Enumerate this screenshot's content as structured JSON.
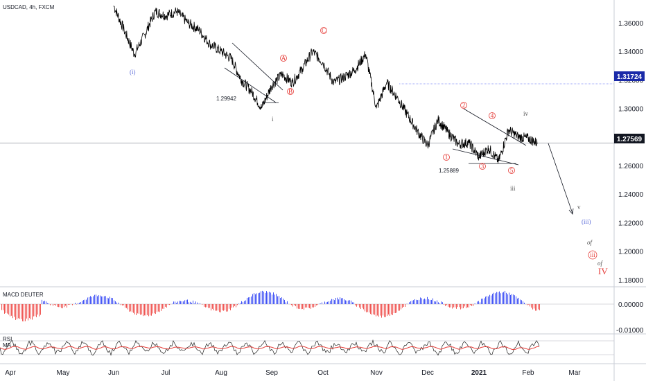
{
  "symbol_title": "USDCAD, 4h, FXCM",
  "colors": {
    "price": "#000000",
    "hline_black": "#787b86",
    "hline_blue": "#3f51f5",
    "macd_pos": "#3f51f5",
    "macd_neg": "#ef5350",
    "rsi_line": "#1e1e1e",
    "rsi_ma": "#e53935",
    "grid": "#e0e3eb",
    "wave_red": "#e53935",
    "wave_blue": "#5b6bd8"
  },
  "chart_data": {
    "type": "line",
    "title": "USDCAD, 4h, FXCM",
    "y_axis": {
      "ylim": [
        1.176,
        1.375
      ],
      "ticks": [
        "1.36000",
        "1.34000",
        "1.32000",
        "1.30000",
        "1.28000",
        "1.26000",
        "1.24000",
        "1.22000",
        "1.20000",
        "1.18000"
      ],
      "tick_values": [
        1.36,
        1.34,
        1.32,
        1.3,
        1.28,
        1.26,
        1.24,
        1.22,
        1.2,
        1.18
      ]
    },
    "x_axis": {
      "labels": [
        "Apr",
        "May",
        "Jun",
        "Jul",
        "Aug",
        "Sep",
        "Oct",
        "Nov",
        "Dec",
        "2021",
        "Feb",
        "Mar"
      ],
      "label_index": [
        0,
        1,
        2,
        3,
        4,
        5,
        6,
        7,
        8,
        9,
        10,
        11
      ]
    },
    "price_anchors": {
      "t": [
        2.0,
        2.2,
        2.4,
        2.6,
        2.8,
        3.0,
        3.2,
        3.4,
        3.6,
        3.8,
        4.0,
        4.2,
        4.4,
        4.6,
        4.8,
        5.0,
        5.2,
        5.4,
        5.6,
        5.8,
        6.0,
        6.2,
        6.4,
        6.6,
        6.8,
        7.0,
        7.2,
        7.4,
        7.6,
        7.8,
        8.0,
        8.2,
        8.4,
        8.6,
        8.8,
        9.0,
        9.2,
        9.4,
        9.6,
        9.8,
        10.0,
        10.2
      ],
      "v": [
        1.372,
        1.355,
        1.338,
        1.352,
        1.368,
        1.365,
        1.368,
        1.36,
        1.355,
        1.345,
        1.34,
        1.335,
        1.32,
        1.312,
        1.3003,
        1.316,
        1.324,
        1.318,
        1.328,
        1.34,
        1.332,
        1.318,
        1.322,
        1.327,
        1.338,
        1.3,
        1.318,
        1.308,
        1.296,
        1.284,
        1.274,
        1.292,
        1.283,
        1.275,
        1.276,
        1.266,
        1.272,
        1.263,
        1.285,
        1.28,
        1.279,
        1.2757
      ]
    },
    "horizontal_levels": [
      {
        "value": 1.31724,
        "label": "1.31724",
        "color": "#3f51f5"
      },
      {
        "value": 1.27569,
        "label": "1.27569",
        "color": "#131722"
      }
    ],
    "annotations": {
      "low_1": "1.29942",
      "low_2": "1.25889"
    },
    "macd": {
      "name": "MACD DEUTER",
      "ticks": [
        "0.00000",
        "-0.01000"
      ],
      "tick_values": [
        0.0,
        -0.01
      ]
    },
    "rsi": {
      "name": "RSI",
      "sub_label": "MA"
    }
  },
  "wave_labels": {
    "I_blue": "(i)",
    "A": "A",
    "B": "B",
    "C": "C",
    "i_small": "i",
    "w1": "1",
    "w2": "2",
    "w3": "3",
    "w4": "4",
    "w5": "5",
    "iii_small": "iii",
    "iv_small": "iv",
    "v_small": "v",
    "iii_blue": "(iii)",
    "of_1": "of",
    "iii_red_circle": "iii",
    "of_2": "of",
    "IV": "IV"
  }
}
